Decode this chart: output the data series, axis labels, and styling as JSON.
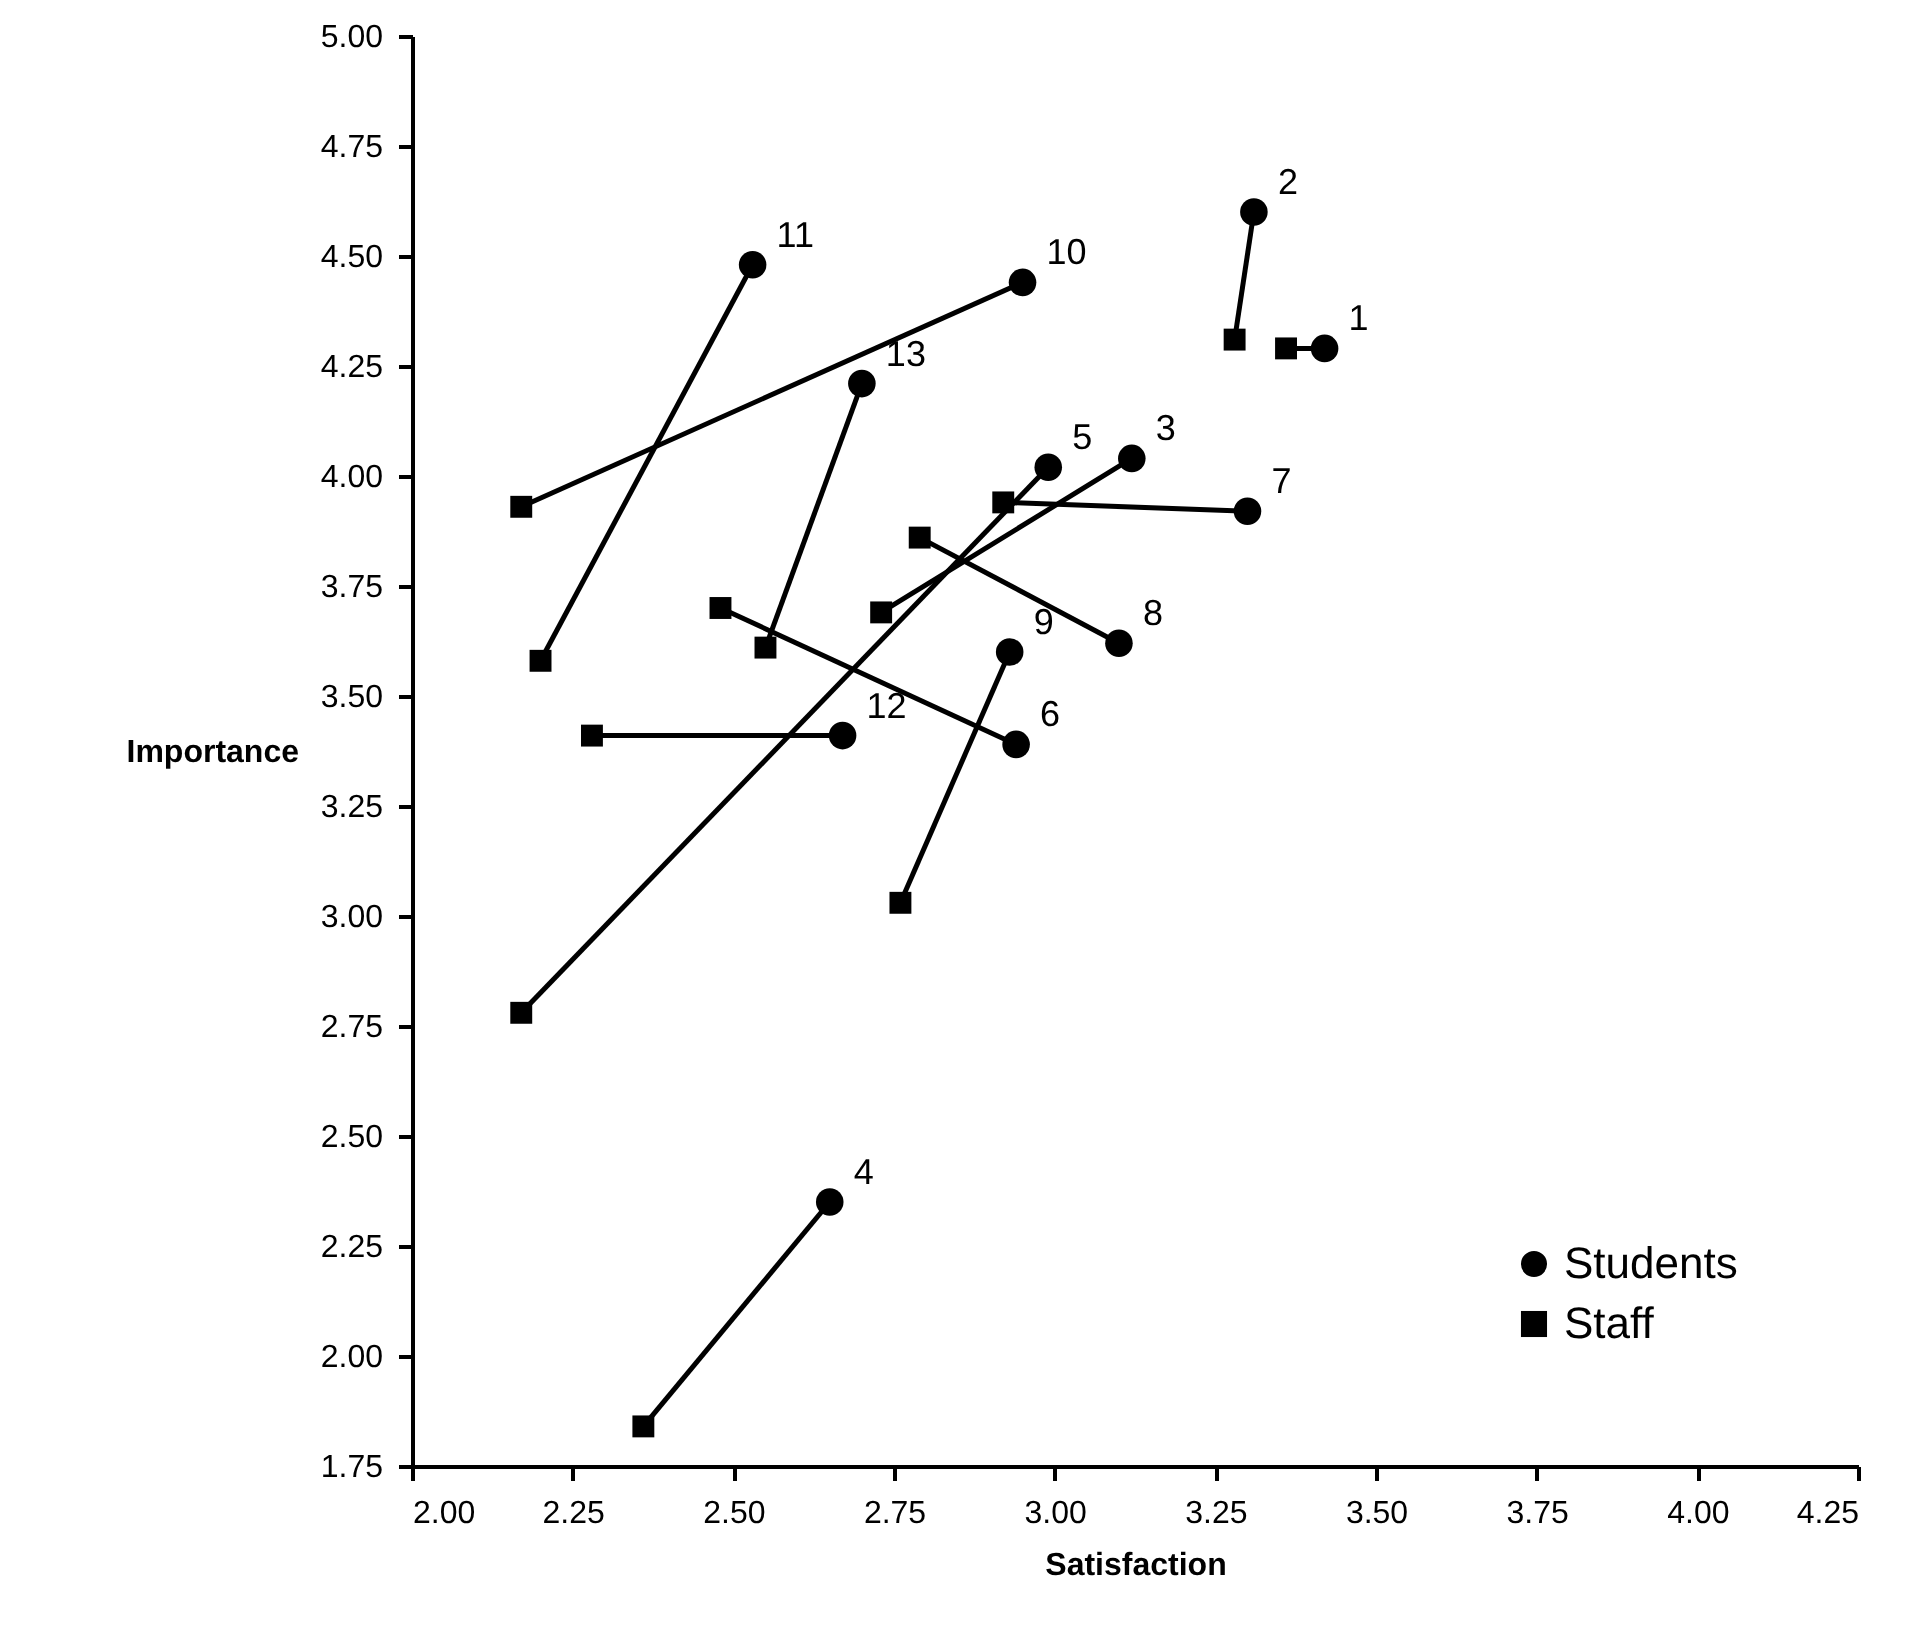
{
  "chart_data": {
    "type": "scatter",
    "xlabel": "Satisfaction",
    "ylabel": "Importance",
    "xlim": [
      2,
      4.25
    ],
    "ylim": [
      1.75,
      5
    ],
    "xticks": [
      {
        "value": 2,
        "label": "2.00"
      },
      {
        "value": 2.25,
        "label": "2.25"
      },
      {
        "value": 2.5,
        "label": "2.50"
      },
      {
        "value": 2.75,
        "label": "2.75"
      },
      {
        "value": 3,
        "label": "3.00"
      },
      {
        "value": 3.25,
        "label": "3.25"
      },
      {
        "value": 3.5,
        "label": "3.50"
      },
      {
        "value": 3.75,
        "label": "3.75"
      },
      {
        "value": 4,
        "label": "4.00"
      },
      {
        "value": 4.25,
        "label": "4.25"
      }
    ],
    "yticks": [
      {
        "value": 1.75,
        "label": "1.75"
      },
      {
        "value": 2,
        "label": "2.00"
      },
      {
        "value": 2.25,
        "label": "2.25"
      },
      {
        "value": 2.5,
        "label": "2.50"
      },
      {
        "value": 2.75,
        "label": "2.75"
      },
      {
        "value": 3,
        "label": "3.00"
      },
      {
        "value": 3.25,
        "label": "3.25"
      },
      {
        "value": 3.5,
        "label": "3.50"
      },
      {
        "value": 3.75,
        "label": "3.75"
      },
      {
        "value": 4,
        "label": "4.00"
      },
      {
        "value": 4.25,
        "label": "4.25"
      },
      {
        "value": 4.5,
        "label": "4.50"
      },
      {
        "value": 4.75,
        "label": "4.75"
      },
      {
        "value": 5,
        "label": "5.00"
      }
    ],
    "grid": false,
    "legend": "bottom right",
    "series": [
      {
        "type": "line",
        "color": "#000000",
        "marker": "none",
        "x": [
          3.36,
          3.42
        ],
        "values": [
          4.29,
          4.29
        ]
      },
      {
        "type": "line",
        "color": "#000000",
        "marker": "none",
        "x": [
          3.28,
          3.31
        ],
        "values": [
          4.31,
          4.6
        ]
      },
      {
        "type": "line",
        "color": "#000000",
        "marker": "none",
        "x": [
          2.73,
          3.12
        ],
        "values": [
          3.69,
          4.04
        ]
      },
      {
        "type": "line",
        "color": "#000000",
        "marker": "none",
        "x": [
          2.36,
          2.65
        ],
        "values": [
          1.84,
          2.35
        ]
      },
      {
        "type": "line",
        "color": "#000000",
        "marker": "none",
        "x": [
          2.17,
          2.99
        ],
        "values": [
          2.78,
          4.02
        ]
      },
      {
        "type": "line",
        "color": "#000000",
        "marker": "none",
        "x": [
          2.48,
          2.94
        ],
        "values": [
          3.7,
          3.39
        ]
      },
      {
        "type": "line",
        "color": "#000000",
        "marker": "none",
        "x": [
          2.92,
          3.3
        ],
        "values": [
          3.94,
          3.92
        ]
      },
      {
        "type": "line",
        "color": "#000000",
        "marker": "none",
        "x": [
          2.79,
          3.1
        ],
        "values": [
          3.86,
          3.62
        ]
      },
      {
        "type": "line",
        "color": "#000000",
        "marker": "none",
        "x": [
          2.76,
          2.93
        ],
        "values": [
          3.03,
          3.6
        ]
      },
      {
        "type": "line",
        "color": "#000000",
        "marker": "none",
        "x": [
          2.17,
          2.95
        ],
        "values": [
          3.93,
          4.44
        ]
      },
      {
        "type": "line",
        "color": "#000000",
        "marker": "none",
        "x": [
          2.2,
          2.53
        ],
        "values": [
          3.58,
          4.48
        ]
      },
      {
        "type": "line",
        "color": "#000000",
        "marker": "none",
        "x": [
          2.28,
          2.67
        ],
        "values": [
          3.41,
          3.41
        ]
      },
      {
        "type": "line",
        "color": "#000000",
        "marker": "none",
        "x": [
          2.55,
          2.7
        ],
        "values": [
          3.61,
          4.21
        ]
      },
      {
        "name": "Students",
        "type": "scatter",
        "color": "#000000",
        "marker": "circle",
        "x": [
          3.42,
          3.31,
          3.12,
          2.65,
          2.99,
          2.94,
          3.3,
          3.1,
          2.93,
          2.95,
          2.53,
          2.67,
          2.7
        ],
        "values": [
          4.29,
          4.6,
          4.04,
          2.35,
          4.02,
          3.39,
          3.92,
          3.62,
          3.6,
          4.44,
          4.48,
          3.41,
          4.21
        ]
      },
      {
        "name": "Staff",
        "type": "scatter",
        "color": "#000000",
        "marker": "square",
        "x": [
          3.36,
          3.28,
          2.73,
          2.36,
          2.17,
          2.48,
          2.92,
          2.79,
          2.76,
          2.17,
          2.2,
          2.28,
          2.55
        ],
        "values": [
          4.29,
          4.31,
          3.69,
          1.84,
          2.78,
          3.7,
          3.94,
          3.86,
          3.03,
          3.93,
          3.58,
          3.41,
          3.61
        ]
      }
    ],
    "annotations": [
      {
        "text": "1",
        "x": 3.42,
        "y": 4.29
      },
      {
        "text": "2",
        "x": 3.31,
        "y": 4.6
      },
      {
        "text": "3",
        "x": 3.12,
        "y": 4.04
      },
      {
        "text": "4",
        "x": 2.65,
        "y": 2.35
      },
      {
        "text": "5",
        "x": 2.99,
        "y": 4.02
      },
      {
        "text": "6",
        "x": 2.94,
        "y": 3.39
      },
      {
        "text": "7",
        "x": 3.3,
        "y": 3.92
      },
      {
        "text": "8",
        "x": 3.1,
        "y": 3.62
      },
      {
        "text": "9",
        "x": 2.93,
        "y": 3.6
      },
      {
        "text": "10",
        "x": 2.95,
        "y": 4.44
      },
      {
        "text": "11",
        "x": 2.53,
        "y": 4.48
      },
      {
        "text": "12",
        "x": 2.67,
        "y": 3.41
      },
      {
        "text": "13",
        "x": 2.7,
        "y": 4.21
      }
    ]
  }
}
